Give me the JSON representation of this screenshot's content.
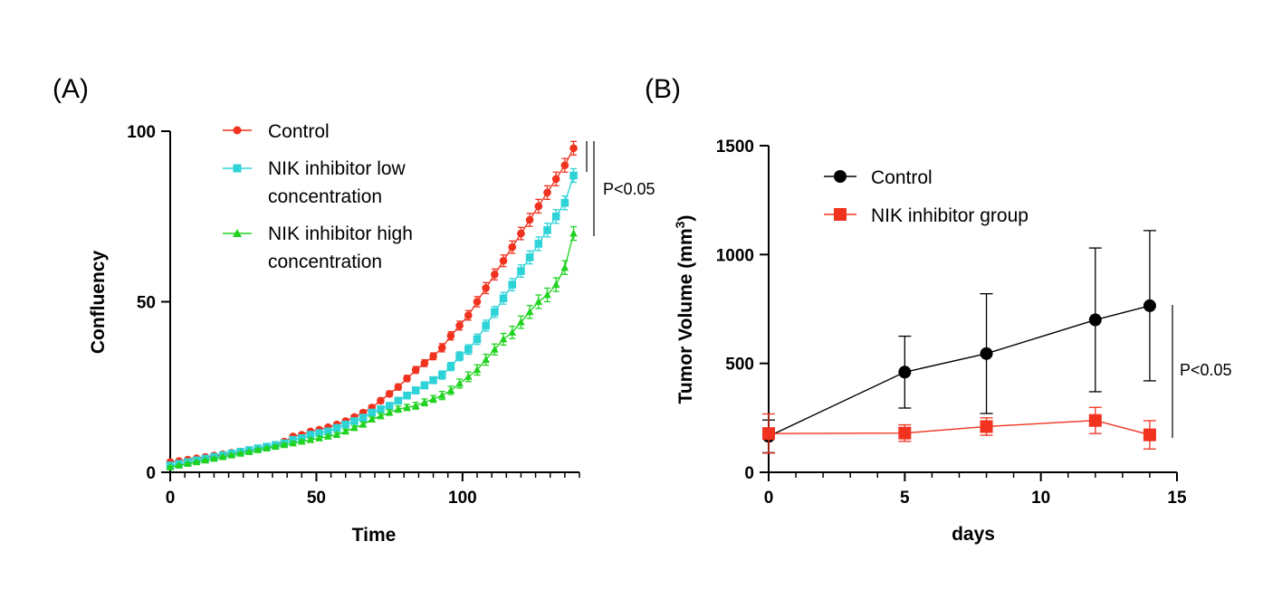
{
  "chart_data": [
    {
      "panel": "(A)",
      "type": "line",
      "title": "",
      "xlabel": "Time",
      "ylabel": "Confluency",
      "xlim": [
        0,
        140
      ],
      "ylim": [
        0,
        100
      ],
      "xticks": [
        "0",
        "50",
        "100"
      ],
      "yticks": [
        "0",
        "50",
        "100"
      ],
      "minor_xtick_step": 5,
      "legend_position": "top-left",
      "x": [
        0,
        3,
        6,
        9,
        12,
        15,
        18,
        21,
        24,
        27,
        30,
        33,
        36,
        39,
        42,
        45,
        48,
        51,
        54,
        57,
        60,
        63,
        66,
        69,
        72,
        75,
        78,
        81,
        84,
        87,
        90,
        93,
        96,
        99,
        102,
        105,
        108,
        111,
        114,
        117,
        120,
        123,
        126,
        129,
        132,
        135,
        138
      ],
      "series": [
        {
          "name": "Control",
          "legend_lines": [
            "Control"
          ],
          "color": "#f0321e",
          "marker": "circle",
          "values": [
            3,
            3.3,
            3.7,
            4.1,
            4.5,
            4.9,
            5.3,
            5.7,
            6.1,
            6.5,
            7,
            7.5,
            8,
            9,
            10.5,
            11,
            12,
            12.5,
            13.2,
            14,
            15,
            16.2,
            17.5,
            19,
            21,
            23,
            25,
            27.5,
            30,
            32,
            34,
            36.5,
            40,
            43,
            46,
            50,
            54,
            58,
            62,
            66,
            70,
            74,
            78,
            82,
            86,
            90,
            95
          ],
          "error": [
            0.3,
            0.3,
            0.3,
            0.3,
            0.3,
            0.3,
            0.3,
            0.3,
            0.3,
            0.3,
            0.4,
            0.4,
            0.4,
            0.5,
            0.5,
            0.5,
            0.5,
            0.5,
            0.5,
            0.6,
            0.6,
            0.6,
            0.7,
            0.7,
            0.8,
            0.8,
            0.9,
            0.9,
            1,
            1,
            1,
            1.2,
            1.2,
            1.3,
            1.4,
            1.5,
            1.6,
            1.6,
            1.7,
            1.8,
            1.8,
            1.9,
            2,
            2,
            2,
            2,
            2
          ]
        },
        {
          "name": "NIK inhibitor low concentration",
          "legend_lines": [
            "NIK inhibitor low",
            "concentration"
          ],
          "color": "#2ed3d8",
          "marker": "square",
          "values": [
            2,
            2.5,
            3,
            3.5,
            4,
            4.5,
            5,
            5.5,
            6,
            6.5,
            7,
            7.5,
            8,
            8.5,
            9.5,
            10,
            11,
            11.5,
            12,
            13,
            14,
            15,
            16,
            17.5,
            18.5,
            19.5,
            21,
            22.5,
            24,
            25.5,
            27,
            28.5,
            31,
            34,
            36,
            39,
            43,
            47,
            51,
            55,
            59,
            63,
            67,
            71,
            75,
            79,
            87
          ],
          "error": [
            0.3,
            0.3,
            0.3,
            0.3,
            0.3,
            0.3,
            0.3,
            0.3,
            0.3,
            0.3,
            0.4,
            0.4,
            0.4,
            0.5,
            0.5,
            0.5,
            0.5,
            0.5,
            0.5,
            0.6,
            0.6,
            0.6,
            0.7,
            0.7,
            0.8,
            0.8,
            0.9,
            0.9,
            1,
            1,
            1,
            1.2,
            1.2,
            1.3,
            1.4,
            1.5,
            1.6,
            1.6,
            1.7,
            1.8,
            1.8,
            1.9,
            2,
            2,
            2,
            2,
            2
          ]
        },
        {
          "name": "NIK inhibitor high concentration",
          "legend_lines": [
            "NIK inhibitor high",
            "concentration"
          ],
          "color": "#21d321",
          "marker": "triangle",
          "values": [
            1.5,
            2,
            2.5,
            3,
            3.5,
            4,
            4.5,
            5,
            5.5,
            6,
            6.5,
            7,
            7.5,
            8,
            8.5,
            9,
            9.5,
            10,
            10.5,
            11,
            12,
            13,
            14,
            15.5,
            16.5,
            17.5,
            18.5,
            19,
            19.5,
            20.5,
            21.5,
            22.5,
            24,
            26,
            28,
            30,
            33,
            36,
            39,
            41,
            44,
            47,
            50,
            52,
            55,
            60,
            70
          ],
          "error": [
            0.3,
            0.3,
            0.3,
            0.3,
            0.3,
            0.3,
            0.3,
            0.3,
            0.3,
            0.3,
            0.4,
            0.4,
            0.4,
            0.5,
            0.5,
            0.5,
            0.5,
            0.5,
            0.5,
            0.6,
            0.6,
            0.6,
            0.7,
            0.7,
            0.8,
            0.8,
            0.9,
            0.9,
            1,
            1,
            1,
            1.2,
            1.2,
            1.3,
            1.4,
            1.5,
            1.6,
            1.6,
            1.7,
            1.8,
            1.8,
            1.9,
            2,
            2,
            2,
            2,
            2
          ]
        }
      ],
      "annotation": "P<0.05"
    },
    {
      "panel": "(B)",
      "type": "line",
      "title": "",
      "xlabel": "days",
      "ylabel_main": "Tumor Volume (mm",
      "ylabel_sup": "3",
      "ylabel_end": ")",
      "xlim": [
        0,
        15
      ],
      "ylim": [
        0,
        1500
      ],
      "xticks": [
        "0",
        "5",
        "10",
        "15"
      ],
      "yticks": [
        "0",
        "500",
        "1000",
        "1500"
      ],
      "minor_xtick_step": 1,
      "legend_position": "top-left",
      "x": [
        0,
        5,
        8,
        12,
        14
      ],
      "series": [
        {
          "name": "Control",
          "color": "#000000",
          "marker": "circle",
          "values": [
            165,
            460,
            545,
            700,
            765
          ],
          "error": [
            75,
            165,
            275,
            330,
            345
          ]
        },
        {
          "name": "NIK inhibitor group",
          "color": "#f0321e",
          "marker": "square",
          "values": [
            178,
            180,
            210,
            238,
            172
          ],
          "error": [
            90,
            38,
            40,
            60,
            65
          ]
        }
      ],
      "annotation": "P<0.05"
    }
  ]
}
